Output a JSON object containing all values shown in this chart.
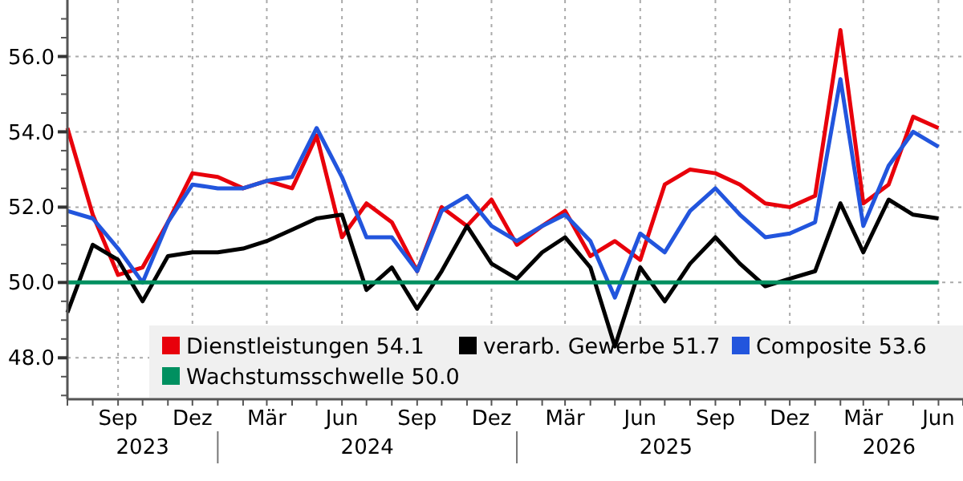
{
  "chart_data": {
    "type": "line",
    "x": [
      "2023-07",
      "2023-08",
      "2023-09",
      "2023-10",
      "2023-11",
      "2023-12",
      "2024-01",
      "2024-02",
      "2024-03",
      "2024-04",
      "2024-05",
      "2024-06",
      "2024-07",
      "2024-08",
      "2024-09",
      "2024-10",
      "2024-11",
      "2024-12",
      "2025-01",
      "2025-02",
      "2025-03",
      "2025-04",
      "2025-05",
      "2025-06",
      "2025-07",
      "2025-08",
      "2025-09",
      "2025-10",
      "2025-11",
      "2025-12",
      "2026-01",
      "2026-02",
      "2026-03",
      "2026-04",
      "2026-05",
      "2026-06"
    ],
    "series": [
      {
        "name": "Dienstleistungen 54.1",
        "color": "#e8000b",
        "values": [
          54.1,
          51.8,
          50.2,
          50.4,
          51.6,
          52.9,
          52.8,
          52.5,
          52.7,
          52.5,
          53.9,
          51.2,
          52.1,
          51.6,
          50.3,
          52.0,
          51.5,
          52.2,
          51.0,
          51.5,
          51.9,
          50.7,
          51.1,
          50.6,
          52.6,
          53.0,
          52.9,
          52.6,
          52.1,
          52.0,
          52.3,
          56.7,
          52.1,
          52.6,
          54.4,
          54.1
        ]
      },
      {
        "name": "verarb. Gewerbe 51.7",
        "color": "#000000",
        "values": [
          49.2,
          51.0,
          50.6,
          49.5,
          50.7,
          50.8,
          50.8,
          50.9,
          51.1,
          51.4,
          51.7,
          51.8,
          49.8,
          50.4,
          49.3,
          50.3,
          51.5,
          50.5,
          50.1,
          50.8,
          51.2,
          50.4,
          48.3,
          50.4,
          49.5,
          50.5,
          51.2,
          50.5,
          49.9,
          50.1,
          50.3,
          52.1,
          50.8,
          52.2,
          51.8,
          51.7
        ]
      },
      {
        "name": "Composite 53.6",
        "color": "#2255dd",
        "values": [
          51.9,
          51.7,
          50.9,
          50.0,
          51.6,
          52.6,
          52.5,
          52.5,
          52.7,
          52.8,
          54.1,
          52.8,
          51.2,
          51.2,
          50.3,
          51.9,
          52.3,
          51.5,
          51.1,
          51.5,
          51.8,
          51.1,
          49.6,
          51.3,
          50.8,
          51.9,
          52.5,
          51.8,
          51.2,
          51.3,
          51.6,
          55.4,
          51.5,
          53.1,
          54.0,
          53.6
        ]
      },
      {
        "name": "Wachstumsschwelle 50.0",
        "color": "#009060",
        "values": [
          50.0,
          50.0,
          50.0,
          50.0,
          50.0,
          50.0,
          50.0,
          50.0,
          50.0,
          50.0,
          50.0,
          50.0,
          50.0,
          50.0,
          50.0,
          50.0,
          50.0,
          50.0,
          50.0,
          50.0,
          50.0,
          50.0,
          50.0,
          50.0,
          50.0,
          50.0,
          50.0,
          50.0,
          50.0,
          50.0,
          50.0,
          50.0,
          50.0,
          50.0,
          50.0,
          50.0
        ]
      }
    ],
    "xlim": [
      "2023-07",
      "2026-07"
    ],
    "xticks": [
      {
        "value": "2023-09",
        "label": "Sep"
      },
      {
        "value": "2023-12",
        "label": "Dez"
      },
      {
        "value": "2024-03",
        "label": "Mär"
      },
      {
        "value": "2024-06",
        "label": "Jun"
      },
      {
        "value": "2024-09",
        "label": "Sep"
      },
      {
        "value": "2024-12",
        "label": "Dez"
      },
      {
        "value": "2025-03",
        "label": "Mär"
      },
      {
        "value": "2025-06",
        "label": "Jun"
      },
      {
        "value": "2025-09",
        "label": "Sep"
      },
      {
        "value": "2025-12",
        "label": "Dez"
      },
      {
        "value": "2026-03",
        "label": "Mär"
      },
      {
        "value": "2026-06",
        "label": "Jun"
      }
    ],
    "ylim": [
      46.9,
      57.5
    ],
    "yticks": [
      {
        "value": 48,
        "label": "48.0"
      },
      {
        "value": 50,
        "label": "50.0"
      },
      {
        "value": 52,
        "label": "52.0"
      },
      {
        "value": 54,
        "label": "54.0"
      },
      {
        "value": 56,
        "label": "56.0"
      }
    ],
    "annotations": [
      "2023",
      "2024",
      "2025",
      "2026"
    ],
    "grid": true,
    "legend": "bottom",
    "line_style": "solid",
    "marker": "none"
  }
}
